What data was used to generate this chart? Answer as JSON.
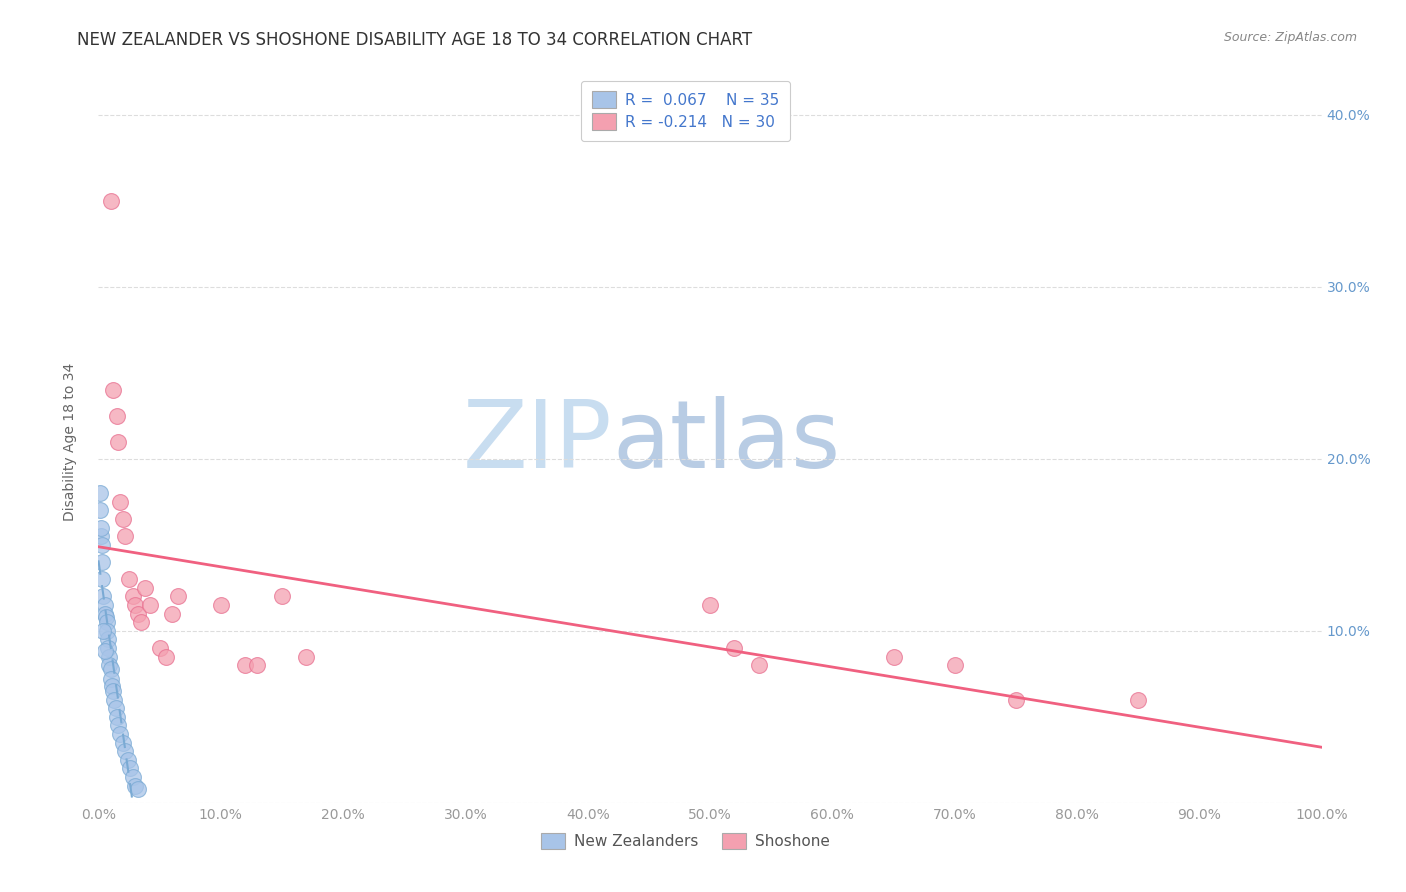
{
  "title": "NEW ZEALANDER VS SHOSHONE DISABILITY AGE 18 TO 34 CORRELATION CHART",
  "source": "Source: ZipAtlas.com",
  "ylabel": "Disability Age 18 to 34",
  "xlim": [
    0,
    1.0
  ],
  "ylim": [
    0,
    0.42
  ],
  "xticks": [
    0.0,
    0.1,
    0.2,
    0.3,
    0.4,
    0.5,
    0.6,
    0.7,
    0.8,
    0.9,
    1.0
  ],
  "yticks": [
    0.0,
    0.1,
    0.2,
    0.3,
    0.4
  ],
  "xtick_labels": [
    "0.0%",
    "10.0%",
    "20.0%",
    "30.0%",
    "40.0%",
    "50.0%",
    "60.0%",
    "70.0%",
    "80.0%",
    "90.0%",
    "100.0%"
  ],
  "ytick_right_labels": [
    "",
    "10.0%",
    "20.0%",
    "30.0%",
    "40.0%"
  ],
  "nz_R": 0.067,
  "nz_N": 35,
  "sho_R": -0.214,
  "sho_N": 30,
  "nz_color": "#a8c4e8",
  "sho_color": "#f4a0b0",
  "nz_edge_color": "#7aaad4",
  "sho_edge_color": "#e87090",
  "nz_line_color": "#7aaad4",
  "sho_line_color": "#f06080",
  "nz_scatter_x": [
    0.001,
    0.002,
    0.003,
    0.003,
    0.004,
    0.005,
    0.005,
    0.006,
    0.007,
    0.007,
    0.008,
    0.008,
    0.009,
    0.009,
    0.01,
    0.01,
    0.011,
    0.012,
    0.013,
    0.014,
    0.015,
    0.016,
    0.018,
    0.02,
    0.022,
    0.024,
    0.026,
    0.028,
    0.03,
    0.032,
    0.001,
    0.002,
    0.003,
    0.004,
    0.005
  ],
  "nz_scatter_y": [
    0.18,
    0.155,
    0.14,
    0.13,
    0.12,
    0.115,
    0.11,
    0.108,
    0.105,
    0.1,
    0.095,
    0.09,
    0.085,
    0.08,
    0.078,
    0.072,
    0.068,
    0.065,
    0.06,
    0.055,
    0.05,
    0.045,
    0.04,
    0.035,
    0.03,
    0.025,
    0.02,
    0.015,
    0.01,
    0.008,
    0.17,
    0.16,
    0.15,
    0.1,
    0.088
  ],
  "sho_scatter_x": [
    0.01,
    0.012,
    0.015,
    0.016,
    0.018,
    0.02,
    0.022,
    0.025,
    0.028,
    0.03,
    0.032,
    0.035,
    0.038,
    0.042,
    0.05,
    0.055,
    0.06,
    0.065,
    0.1,
    0.12,
    0.13,
    0.15,
    0.17,
    0.5,
    0.52,
    0.54,
    0.65,
    0.7,
    0.75,
    0.85
  ],
  "sho_scatter_y": [
    0.35,
    0.24,
    0.225,
    0.21,
    0.175,
    0.165,
    0.155,
    0.13,
    0.12,
    0.115,
    0.11,
    0.105,
    0.125,
    0.115,
    0.09,
    0.085,
    0.11,
    0.12,
    0.115,
    0.08,
    0.08,
    0.12,
    0.085,
    0.115,
    0.09,
    0.08,
    0.085,
    0.08,
    0.06,
    0.06
  ],
  "background_color": "#ffffff",
  "grid_color": "#dddddd",
  "watermark_zip": "ZIP",
  "watermark_atlas": "atlas",
  "watermark_color_zip": "#c8ddf0",
  "watermark_color_atlas": "#b8cce4",
  "legend_label_nz": "New Zealanders",
  "legend_label_sho": "Shoshone",
  "title_fontsize": 12,
  "axis_label_fontsize": 10,
  "tick_fontsize": 10,
  "legend_fontsize": 11,
  "scatter_size": 130,
  "scatter_alpha": 0.75
}
